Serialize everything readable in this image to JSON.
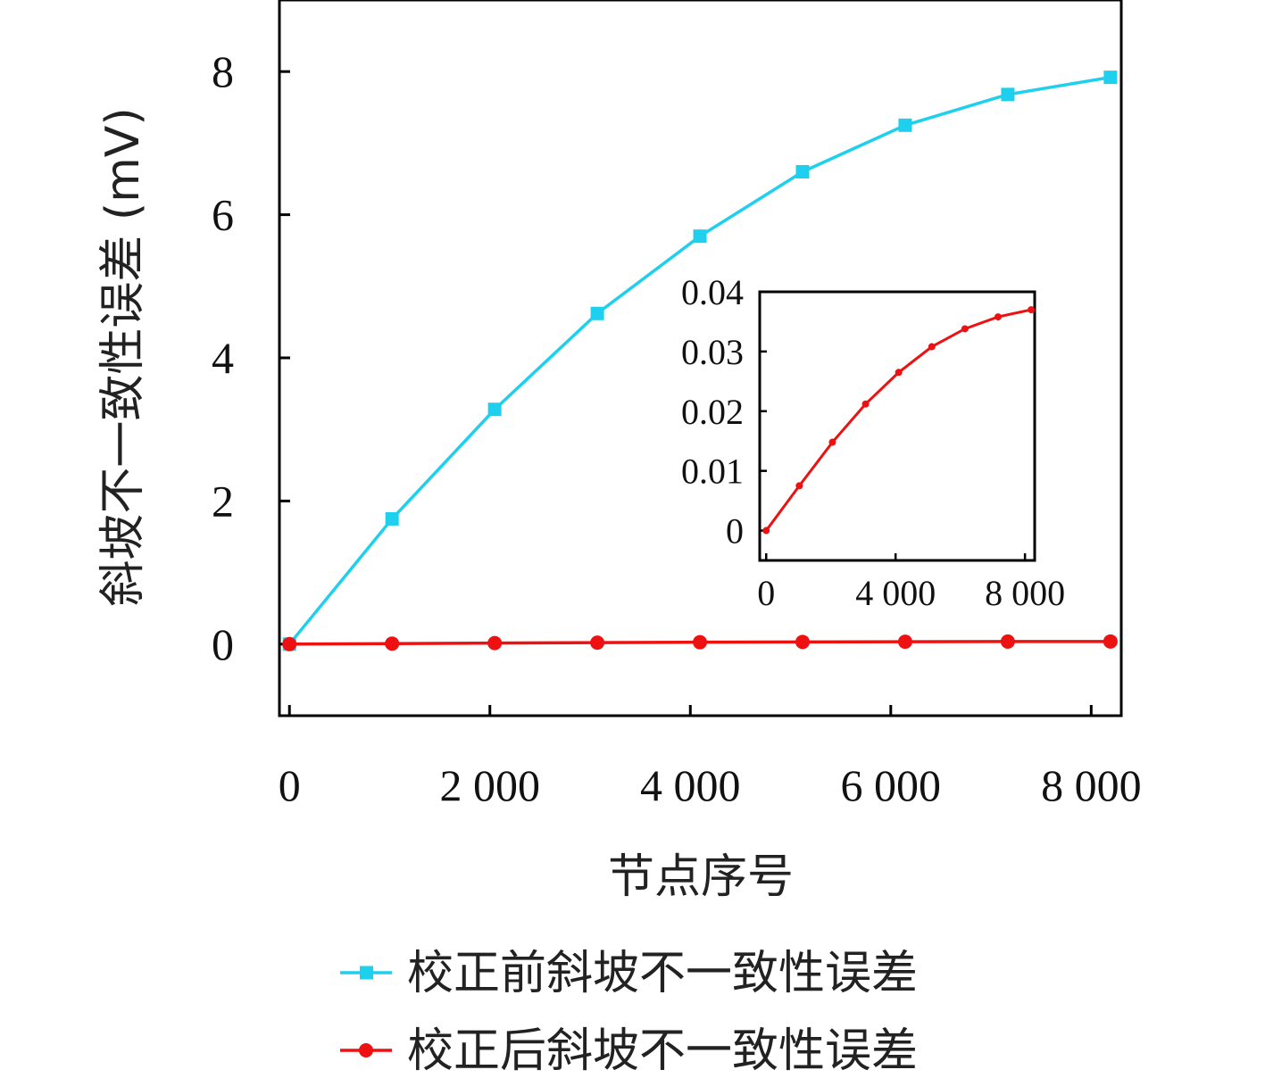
{
  "chart_data": [
    {
      "type": "line",
      "xlabel": "节点序号",
      "ylabel": "斜坡不一致性误差 (mV)",
      "xlim": [
        -100,
        8300
      ],
      "ylim": [
        -1,
        9
      ],
      "xticks": [
        0,
        2000,
        4000,
        6000,
        8000
      ],
      "xtick_labels": [
        "0",
        "2 000",
        "4 000",
        "6 000",
        "8 000"
      ],
      "yticks": [
        0,
        2,
        4,
        6,
        8
      ],
      "ytick_labels": [
        "0",
        "2",
        "4",
        "6",
        "8"
      ],
      "grid": false,
      "legend_position": "bottom",
      "x": [
        0,
        1024,
        2048,
        3072,
        4096,
        5120,
        6144,
        7168,
        8192
      ],
      "series": [
        {
          "name": "校正前斜坡不一致性误差",
          "color": "#1fd0ee",
          "marker": "square",
          "values": [
            0,
            1.75,
            3.28,
            4.62,
            5.7,
            6.6,
            7.25,
            7.68,
            7.92
          ]
        },
        {
          "name": "校正后斜坡不一致性误差",
          "color": "#ee1111",
          "marker": "circle",
          "values": [
            0,
            0.0075,
            0.0148,
            0.0212,
            0.0265,
            0.0308,
            0.0338,
            0.0358,
            0.037
          ]
        }
      ]
    },
    {
      "type": "line",
      "role": "inset",
      "xlim": [
        -200,
        8300
      ],
      "ylim": [
        -0.005,
        0.04
      ],
      "xticks": [
        0,
        4000,
        8000
      ],
      "xtick_labels": [
        "0",
        "4 000",
        "8 000"
      ],
      "yticks": [
        0,
        0.01,
        0.02,
        0.03,
        0.04
      ],
      "ytick_labels": [
        "0",
        "0.01",
        "0.02",
        "0.03",
        "0.04"
      ],
      "x": [
        0,
        1024,
        2048,
        3072,
        4096,
        5120,
        6144,
        7168,
        8192
      ],
      "series": [
        {
          "color": "#ee1111",
          "marker": "circle",
          "values": [
            0,
            0.0075,
            0.0148,
            0.0212,
            0.0265,
            0.0308,
            0.0338,
            0.0358,
            0.037
          ]
        }
      ]
    }
  ]
}
